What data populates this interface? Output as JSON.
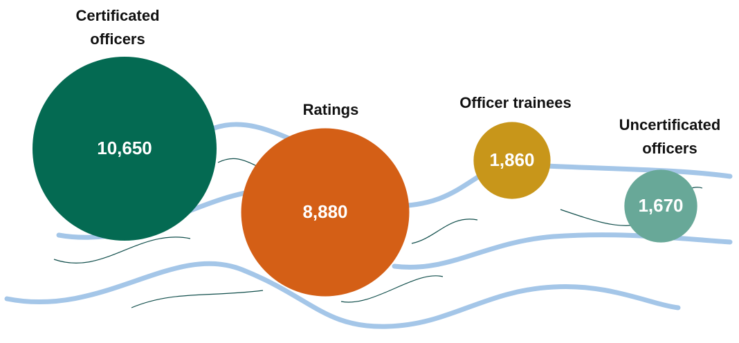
{
  "chart_data": {
    "type": "bubble",
    "categories": [
      "Certificated officers",
      "Ratings",
      "Officer trainees",
      "Uncertificated officers"
    ],
    "values": [
      10650,
      8880,
      1860,
      1670
    ],
    "value_labels": [
      "10,650",
      "8,880",
      "1,860",
      "1,670"
    ],
    "colors": [
      "#046a52",
      "#d45f16",
      "#c8961a",
      "#68a898"
    ]
  }
}
